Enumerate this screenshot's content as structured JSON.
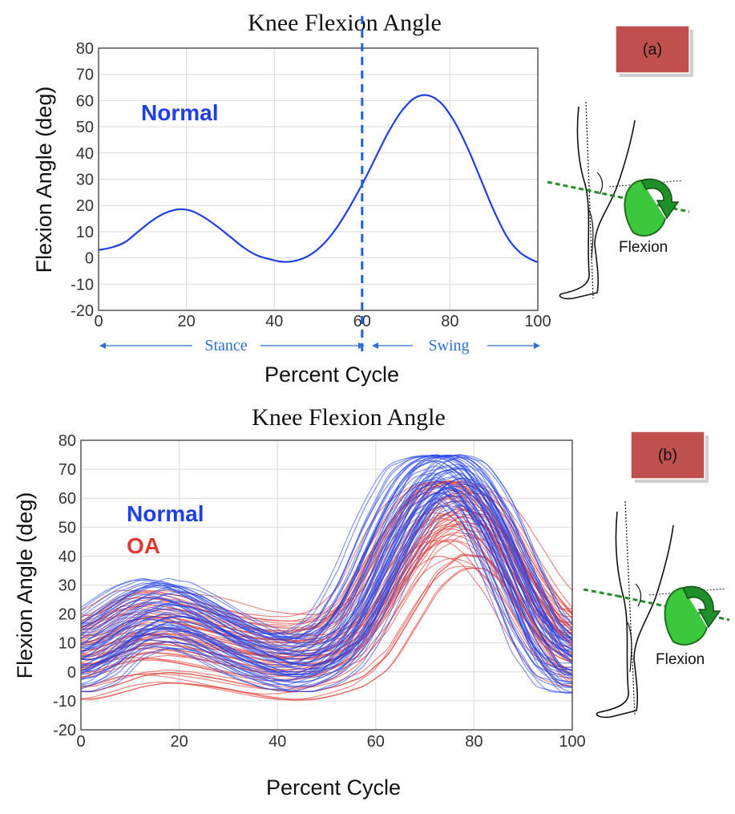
{
  "colors": {
    "normal": "#1f3fe6",
    "oa": "#e23a32",
    "badge": "#c0504d",
    "arrow_green": "#3cc83c",
    "dash": "#2c8a2c"
  },
  "chart_data": [
    {
      "type": "line",
      "panel_label": "(a)",
      "title": "Knee Flexion Angle",
      "xlabel": "Percent Cycle",
      "ylabel": "Flexion Angle (deg)",
      "xlim": [
        0,
        100
      ],
      "ylim": [
        -20,
        80
      ],
      "xticks": [
        0,
        20,
        40,
        60,
        80,
        100
      ],
      "yticks": [
        -20,
        -10,
        0,
        10,
        20,
        30,
        40,
        50,
        60,
        70,
        80
      ],
      "grid": true,
      "legend": [
        "Normal"
      ],
      "series": [
        {
          "name": "Normal",
          "x": [
            0,
            3,
            6,
            9,
            12,
            15,
            18,
            21,
            24,
            27,
            30,
            33,
            36,
            39,
            42,
            45,
            48,
            51,
            54,
            57,
            60,
            63,
            66,
            69,
            72,
            75,
            78,
            81,
            84,
            87,
            90,
            93,
            96,
            99,
            100
          ],
          "y": [
            3,
            4,
            6,
            10,
            14,
            17,
            18.5,
            18,
            15.5,
            12,
            8,
            4,
            1,
            -0.5,
            -1.5,
            -1,
            1,
            5,
            11,
            19,
            28,
            38,
            48,
            56,
            61,
            62,
            59,
            52,
            42,
            30,
            18,
            8,
            2,
            -1,
            -1.5
          ]
        }
      ],
      "divider_x": 60,
      "phases": [
        "Stance",
        "Swing"
      ]
    },
    {
      "type": "line",
      "panel_label": "(b)",
      "title": "Knee Flexion Angle",
      "xlabel": "Percent Cycle",
      "ylabel": "Flexion Angle (deg)",
      "xlim": [
        0,
        100
      ],
      "ylim": [
        -20,
        80
      ],
      "xticks": [
        0,
        20,
        40,
        60,
        80,
        100
      ],
      "yticks": [
        -20,
        -10,
        0,
        10,
        20,
        30,
        40,
        50,
        60,
        70,
        80
      ],
      "grid": true,
      "legend": [
        "Normal",
        "OA"
      ],
      "series": [
        {
          "name": "Normal",
          "curves": 60,
          "x": [
            0,
            5,
            10,
            15,
            20,
            25,
            30,
            35,
            40,
            45,
            50,
            55,
            60,
            65,
            70,
            75,
            80,
            85,
            90,
            95,
            100
          ],
          "y_mean": [
            5,
            10,
            17,
            20,
            19,
            15,
            10,
            6,
            3,
            3,
            7,
            17,
            35,
            53,
            65,
            68,
            60,
            43,
            22,
            7,
            2
          ],
          "y_range": [
            [
              -13,
              17
            ],
            [
              -10,
              24
            ],
            [
              0,
              30
            ],
            [
              3,
              33
            ],
            [
              2,
              31
            ],
            [
              -1,
              27
            ],
            [
              -5,
              22
            ],
            [
              -8,
              18
            ],
            [
              -11,
              14
            ],
            [
              -10,
              15
            ],
            [
              -5,
              23
            ],
            [
              3,
              42
            ],
            [
              15,
              60
            ],
            [
              30,
              70
            ],
            [
              45,
              74
            ],
            [
              50,
              75
            ],
            [
              40,
              72
            ],
            [
              20,
              62
            ],
            [
              0,
              45
            ],
            [
              -10,
              25
            ],
            [
              -13,
              12
            ]
          ]
        },
        {
          "name": "OA",
          "curves": 55,
          "x": [
            0,
            5,
            10,
            15,
            20,
            25,
            30,
            35,
            40,
            45,
            50,
            55,
            60,
            65,
            70,
            75,
            80,
            85,
            90,
            95,
            100
          ],
          "y_mean": [
            5,
            8,
            12,
            13,
            12,
            10,
            8,
            6,
            5,
            5,
            7,
            12,
            24,
            38,
            50,
            55,
            53,
            43,
            28,
            15,
            8
          ],
          "y_range": [
            [
              -10,
              25
            ],
            [
              -11,
              26
            ],
            [
              -13,
              28
            ],
            [
              -13,
              28
            ],
            [
              -13,
              27
            ],
            [
              -12,
              26
            ],
            [
              -12,
              25
            ],
            [
              -12,
              24
            ],
            [
              -12,
              24
            ],
            [
              -12,
              23
            ],
            [
              -10,
              25
            ],
            [
              -8,
              32
            ],
            [
              -5,
              48
            ],
            [
              5,
              58
            ],
            [
              15,
              64
            ],
            [
              20,
              66
            ],
            [
              20,
              64
            ],
            [
              15,
              58
            ],
            [
              5,
              48
            ],
            [
              -5,
              38
            ],
            [
              -5,
              30
            ]
          ]
        }
      ]
    }
  ],
  "figures": [
    {
      "caption": "Flexion"
    },
    {
      "caption": "Flexion"
    }
  ]
}
